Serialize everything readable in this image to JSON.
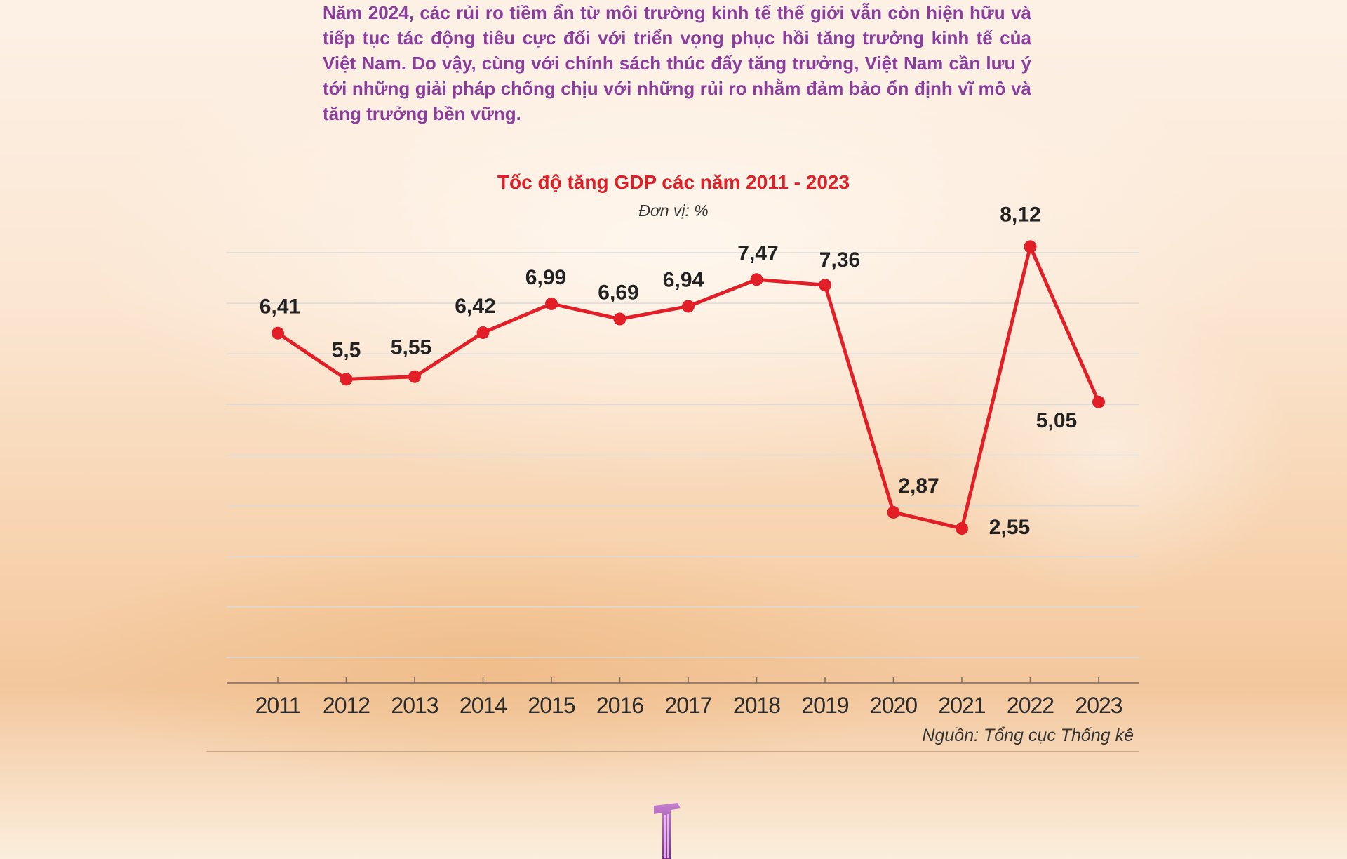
{
  "intro_text": "Năm 2024, các rủi ro tiềm ẩn từ môi trường kinh tế thế giới vẫn còn hiện hữu và tiếp tục tác động tiêu cực đối với triển vọng phục hồi tăng trưởng kinh tế của Việt Nam. Do vậy, cùng với chính sách thúc đẩy tăng trưởng, Việt Nam cần lưu ý tới những giải pháp chống chịu với những rủi ro nhằm đảm bảo ổn định vĩ mô và tăng trưởng bền vững.",
  "chart_data": {
    "type": "line",
    "title": "Tốc độ tăng GDP các năm 2011 - 2023",
    "unit": "Đơn vị: %",
    "source": "Nguồn: Tổng cục Thống kê",
    "categories": [
      "2011",
      "2012",
      "2013",
      "2014",
      "2015",
      "2016",
      "2017",
      "2018",
      "2019",
      "2020",
      "2021",
      "2022",
      "2023"
    ],
    "values": [
      6.41,
      5.5,
      5.55,
      6.42,
      6.99,
      6.69,
      6.94,
      7.47,
      7.36,
      2.87,
      2.55,
      8.12,
      5.05
    ],
    "labels": [
      "6,41",
      "5,5",
      "5,55",
      "6,42",
      "6,99",
      "6,69",
      "6,94",
      "7,47",
      "7,36",
      "2,87",
      "2,55",
      "8,12",
      "5,05"
    ],
    "ylim": [
      -0.5,
      8.5
    ],
    "grid": true,
    "line_color": "#e21e26"
  }
}
